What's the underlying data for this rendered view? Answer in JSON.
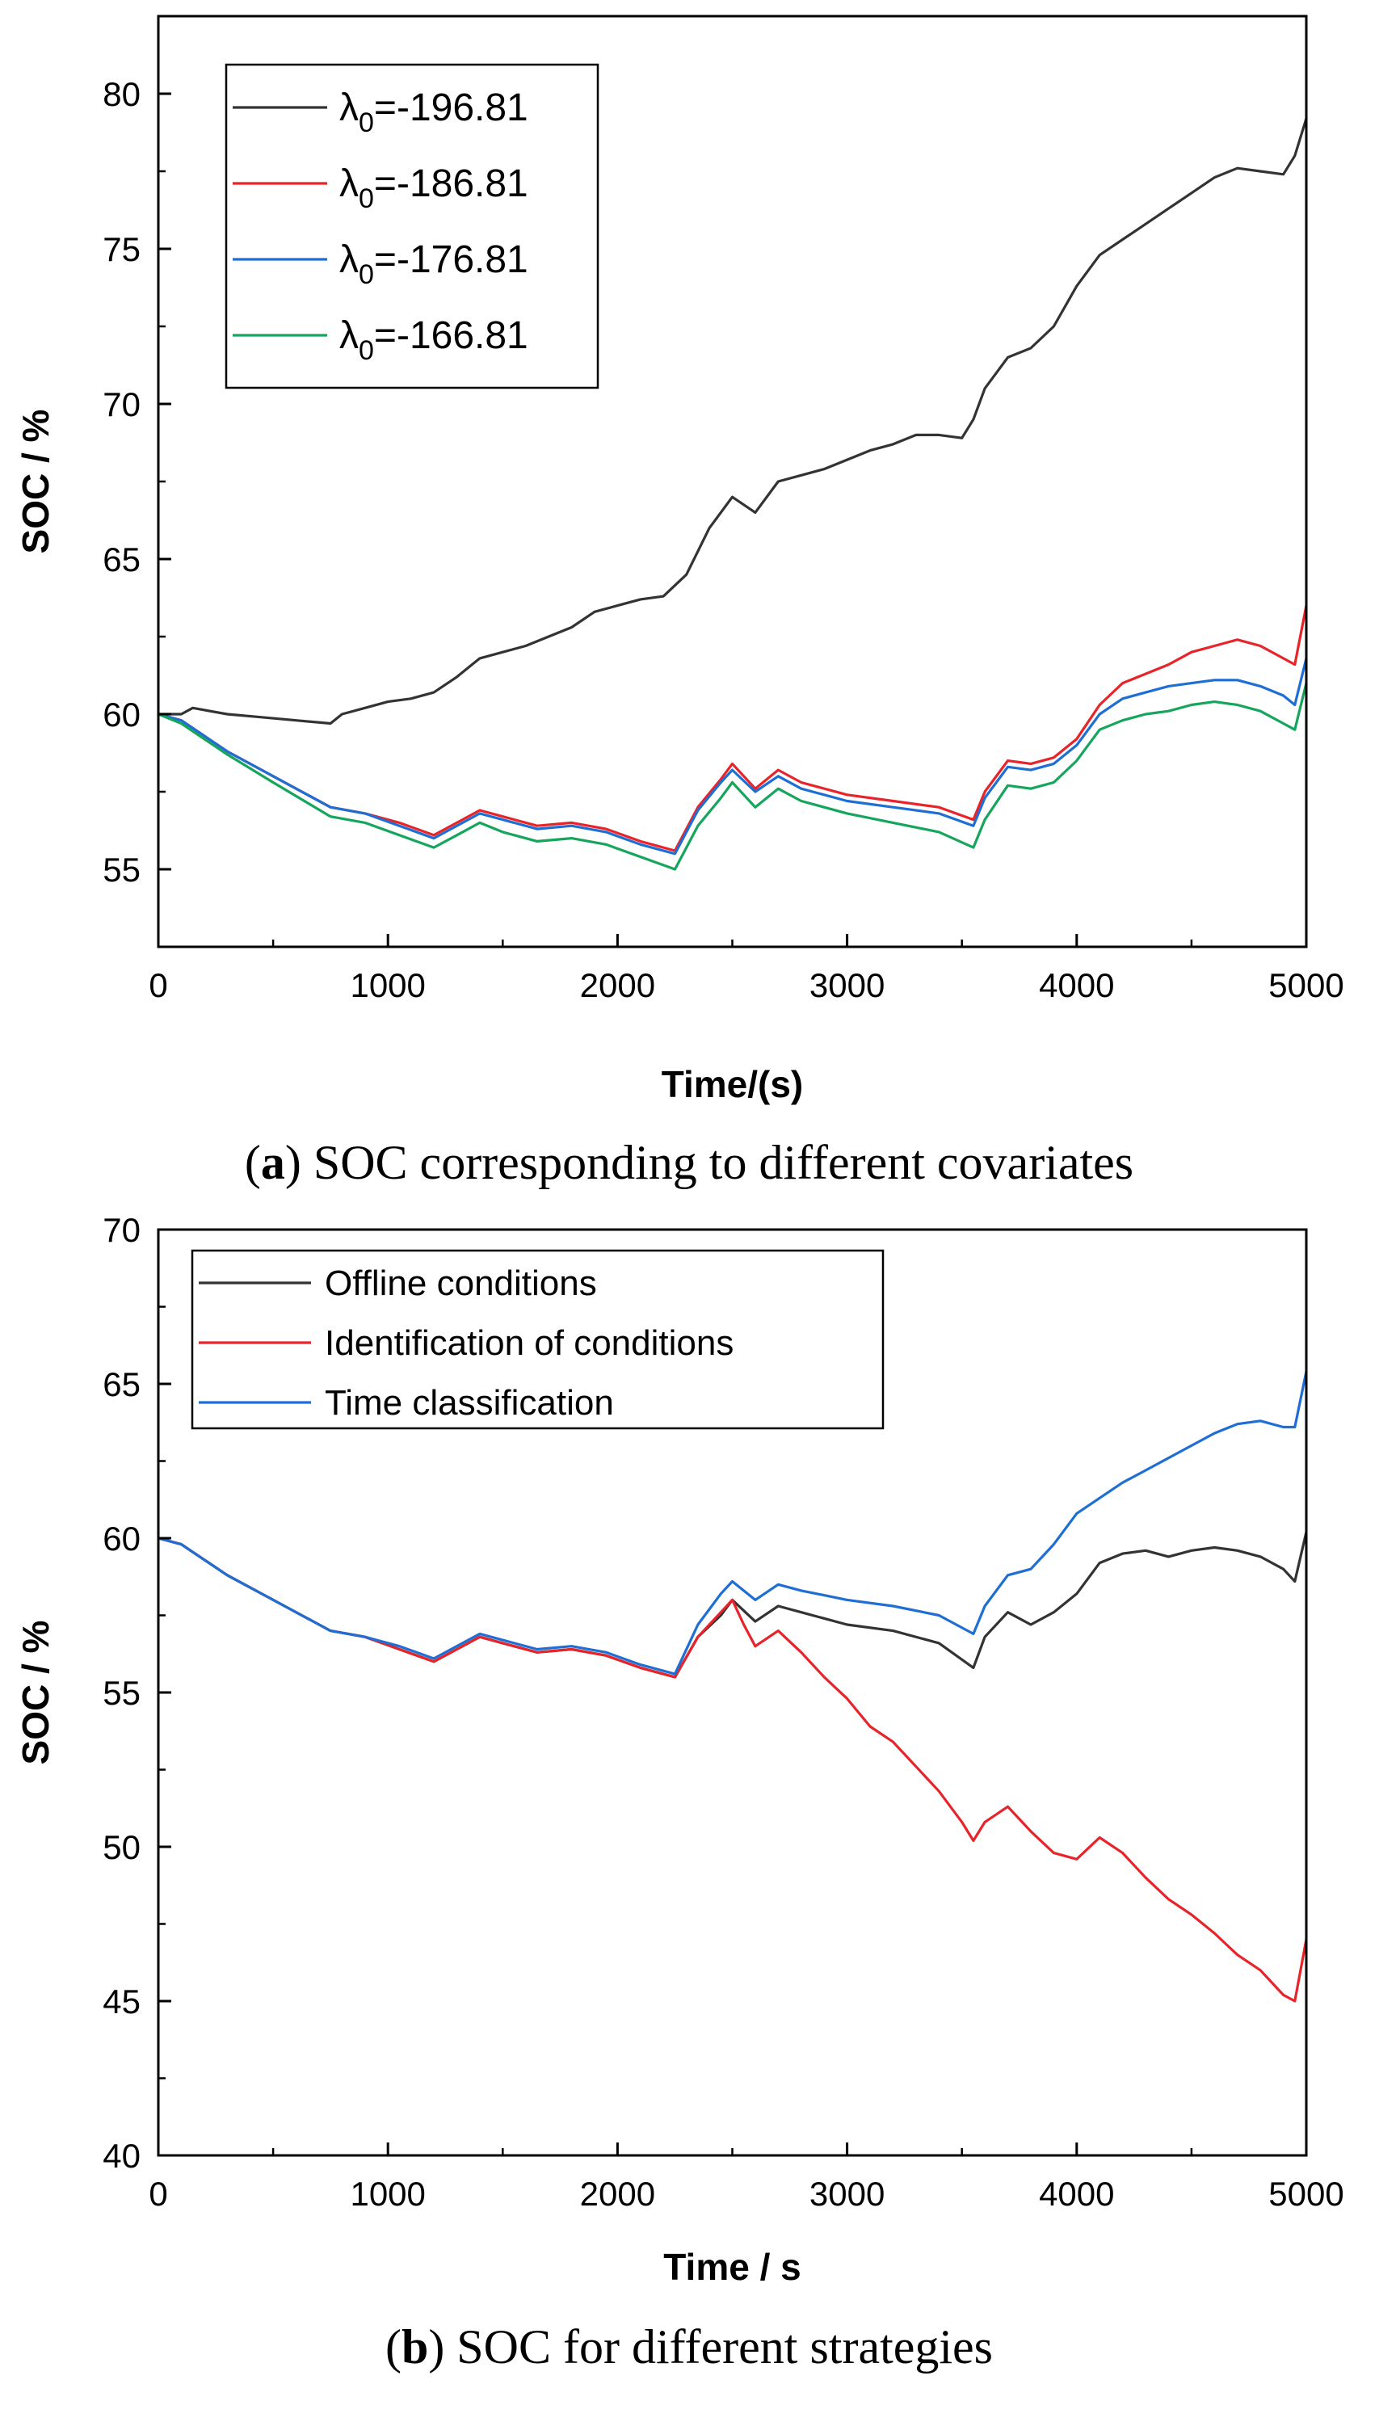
{
  "chart_data": [
    {
      "type": "line",
      "caption_label": "a",
      "caption_text": "SOC corresponding to different covariates",
      "xlabel": "Time/(s)",
      "ylabel": "SOC / %",
      "xlim": [
        0,
        5000
      ],
      "ylim": [
        52.5,
        82.5
      ],
      "xticks": [
        0,
        1000,
        2000,
        3000,
        4000,
        5000
      ],
      "yticks": [
        55,
        60,
        65,
        70,
        75,
        80
      ],
      "legend_position": "top-left",
      "series": [
        {
          "name": "λ0=-196.81",
          "legend_symbol": "λ",
          "legend_sub": "0",
          "legend_value": "=-196.81",
          "color": "#333333",
          "x": [
            0,
            100,
            150,
            300,
            450,
            600,
            750,
            800,
            900,
            1000,
            1100,
            1200,
            1300,
            1400,
            1500,
            1600,
            1700,
            1800,
            1900,
            2000,
            2100,
            2200,
            2300,
            2400,
            2500,
            2600,
            2700,
            2800,
            2900,
            3000,
            3100,
            3200,
            3300,
            3400,
            3500,
            3550,
            3600,
            3700,
            3800,
            3900,
            4000,
            4100,
            4200,
            4300,
            4400,
            4500,
            4600,
            4700,
            4800,
            4900,
            4950,
            5000
          ],
          "y": [
            60.0,
            60.0,
            60.2,
            60.0,
            59.9,
            59.8,
            59.7,
            60.0,
            60.2,
            60.4,
            60.5,
            60.7,
            61.2,
            61.8,
            62.0,
            62.2,
            62.5,
            62.8,
            63.3,
            63.5,
            63.7,
            63.8,
            64.5,
            66.0,
            67.0,
            66.5,
            67.5,
            67.7,
            67.9,
            68.2,
            68.5,
            68.7,
            69.0,
            69.0,
            68.9,
            69.5,
            70.5,
            71.5,
            71.8,
            72.5,
            73.8,
            74.8,
            75.3,
            75.8,
            76.3,
            76.8,
            77.3,
            77.6,
            77.5,
            77.4,
            78.0,
            79.2
          ]
        },
        {
          "name": "λ0=-186.81",
          "legend_symbol": "λ",
          "legend_sub": "0",
          "legend_value": "=-186.81",
          "color": "#e8242b",
          "x": [
            0,
            100,
            300,
            500,
            750,
            900,
            1050,
            1200,
            1300,
            1400,
            1500,
            1650,
            1800,
            1950,
            2100,
            2250,
            2350,
            2450,
            2500,
            2600,
            2700,
            2800,
            3000,
            3200,
            3400,
            3550,
            3600,
            3700,
            3800,
            3900,
            4000,
            4100,
            4200,
            4300,
            4400,
            4500,
            4600,
            4700,
            4800,
            4900,
            4950,
            5000
          ],
          "y": [
            60.0,
            59.8,
            58.8,
            58.0,
            57.0,
            56.8,
            56.5,
            56.1,
            56.5,
            56.9,
            56.7,
            56.4,
            56.5,
            56.3,
            55.9,
            55.6,
            57.0,
            57.9,
            58.4,
            57.6,
            58.2,
            57.8,
            57.4,
            57.2,
            57.0,
            56.6,
            57.5,
            58.5,
            58.4,
            58.6,
            59.2,
            60.3,
            61.0,
            61.3,
            61.6,
            62.0,
            62.2,
            62.4,
            62.2,
            61.8,
            61.6,
            63.5
          ]
        },
        {
          "name": "λ0=-176.81",
          "legend_symbol": "λ",
          "legend_sub": "0",
          "legend_value": "=-176.81",
          "color": "#1f6ed4",
          "x": [
            0,
            100,
            300,
            500,
            750,
            900,
            1050,
            1200,
            1300,
            1400,
            1500,
            1650,
            1800,
            1950,
            2100,
            2250,
            2350,
            2450,
            2500,
            2600,
            2700,
            2800,
            3000,
            3200,
            3400,
            3550,
            3600,
            3700,
            3800,
            3900,
            4000,
            4100,
            4200,
            4300,
            4400,
            4500,
            4600,
            4700,
            4800,
            4900,
            4950,
            5000
          ],
          "y": [
            60.0,
            59.8,
            58.8,
            58.0,
            57.0,
            56.8,
            56.4,
            56.0,
            56.4,
            56.8,
            56.6,
            56.3,
            56.4,
            56.2,
            55.8,
            55.5,
            56.9,
            57.8,
            58.2,
            57.5,
            58.0,
            57.6,
            57.2,
            57.0,
            56.8,
            56.4,
            57.3,
            58.3,
            58.2,
            58.4,
            59.0,
            60.0,
            60.5,
            60.7,
            60.9,
            61.0,
            61.1,
            61.1,
            60.9,
            60.6,
            60.3,
            61.8
          ]
        },
        {
          "name": "λ0=-166.81",
          "legend_symbol": "λ",
          "legend_sub": "0",
          "legend_value": "=-166.81",
          "color": "#16a55c",
          "x": [
            0,
            100,
            300,
            500,
            750,
            900,
            1050,
            1200,
            1300,
            1400,
            1500,
            1650,
            1800,
            1950,
            2100,
            2250,
            2350,
            2450,
            2500,
            2600,
            2700,
            2800,
            3000,
            3200,
            3400,
            3550,
            3600,
            3700,
            3800,
            3900,
            4000,
            4100,
            4200,
            4300,
            4400,
            4500,
            4600,
            4700,
            4800,
            4900,
            4950,
            5000
          ],
          "y": [
            60.0,
            59.7,
            58.7,
            57.8,
            56.7,
            56.5,
            56.1,
            55.7,
            56.1,
            56.5,
            56.2,
            55.9,
            56.0,
            55.8,
            55.4,
            55.0,
            56.4,
            57.3,
            57.8,
            57.0,
            57.6,
            57.2,
            56.8,
            56.5,
            56.2,
            55.7,
            56.6,
            57.7,
            57.6,
            57.8,
            58.5,
            59.5,
            59.8,
            60.0,
            60.1,
            60.3,
            60.4,
            60.3,
            60.1,
            59.7,
            59.5,
            61.0
          ]
        }
      ]
    },
    {
      "type": "line",
      "caption_label": "b",
      "caption_text": "SOC for different strategies",
      "xlabel": "Time / s",
      "ylabel": "SOC / %",
      "xlim": [
        0,
        5000
      ],
      "ylim": [
        40,
        70
      ],
      "xticks": [
        0,
        1000,
        2000,
        3000,
        4000,
        5000
      ],
      "yticks": [
        40,
        45,
        50,
        55,
        60,
        65,
        70
      ],
      "legend_position": "top-left",
      "series": [
        {
          "name": "Offline conditions",
          "color": "#333333",
          "x": [
            0,
            100,
            300,
            500,
            750,
            900,
            1050,
            1200,
            1300,
            1400,
            1500,
            1650,
            1800,
            1950,
            2100,
            2250,
            2350,
            2450,
            2500,
            2600,
            2700,
            2800,
            3000,
            3200,
            3400,
            3550,
            3600,
            3700,
            3800,
            3900,
            4000,
            4100,
            4200,
            4300,
            4400,
            4500,
            4600,
            4700,
            4800,
            4900,
            4950,
            5000
          ],
          "y": [
            60.0,
            59.8,
            58.8,
            58.0,
            57.0,
            56.8,
            56.4,
            56.0,
            56.4,
            56.8,
            56.6,
            56.3,
            56.4,
            56.2,
            55.8,
            55.5,
            56.8,
            57.5,
            58.0,
            57.3,
            57.8,
            57.6,
            57.2,
            57.0,
            56.6,
            55.8,
            56.8,
            57.6,
            57.2,
            57.6,
            58.2,
            59.2,
            59.5,
            59.6,
            59.4,
            59.6,
            59.7,
            59.6,
            59.4,
            59.0,
            58.6,
            60.2
          ]
        },
        {
          "name": "Identification of conditions",
          "color": "#e8242b",
          "x": [
            0,
            100,
            300,
            500,
            750,
            900,
            1050,
            1200,
            1300,
            1400,
            1500,
            1650,
            1800,
            1950,
            2100,
            2250,
            2350,
            2450,
            2500,
            2550,
            2600,
            2700,
            2800,
            2900,
            3000,
            3100,
            3200,
            3300,
            3400,
            3500,
            3550,
            3600,
            3700,
            3800,
            3900,
            4000,
            4100,
            4200,
            4300,
            4400,
            4500,
            4600,
            4700,
            4800,
            4900,
            4950,
            5000
          ],
          "y": [
            60.0,
            59.8,
            58.8,
            58.0,
            57.0,
            56.8,
            56.4,
            56.0,
            56.4,
            56.8,
            56.6,
            56.3,
            56.4,
            56.2,
            55.8,
            55.5,
            56.8,
            57.6,
            58.0,
            57.2,
            56.5,
            57.0,
            56.3,
            55.5,
            54.8,
            53.9,
            53.4,
            52.6,
            51.8,
            50.8,
            50.2,
            50.8,
            51.3,
            50.5,
            49.8,
            49.6,
            50.3,
            49.8,
            49.0,
            48.3,
            47.8,
            47.2,
            46.5,
            46.0,
            45.2,
            45.0,
            47.0
          ]
        },
        {
          "name": "Time classification",
          "color": "#1f6ed4",
          "x": [
            0,
            100,
            300,
            500,
            750,
            900,
            1050,
            1200,
            1300,
            1400,
            1500,
            1650,
            1800,
            1950,
            2100,
            2250,
            2350,
            2450,
            2500,
            2600,
            2700,
            2800,
            3000,
            3200,
            3400,
            3550,
            3600,
            3700,
            3800,
            3900,
            4000,
            4100,
            4200,
            4300,
            4400,
            4500,
            4600,
            4700,
            4800,
            4900,
            4950,
            5000
          ],
          "y": [
            60.0,
            59.8,
            58.8,
            58.0,
            57.0,
            56.8,
            56.5,
            56.1,
            56.5,
            56.9,
            56.7,
            56.4,
            56.5,
            56.3,
            55.9,
            55.6,
            57.2,
            58.2,
            58.6,
            58.0,
            58.5,
            58.3,
            58.0,
            57.8,
            57.5,
            56.9,
            57.8,
            58.8,
            59.0,
            59.8,
            60.8,
            61.3,
            61.8,
            62.2,
            62.6,
            63.0,
            63.4,
            63.7,
            63.8,
            63.6,
            63.6,
            65.4
          ]
        }
      ]
    }
  ]
}
